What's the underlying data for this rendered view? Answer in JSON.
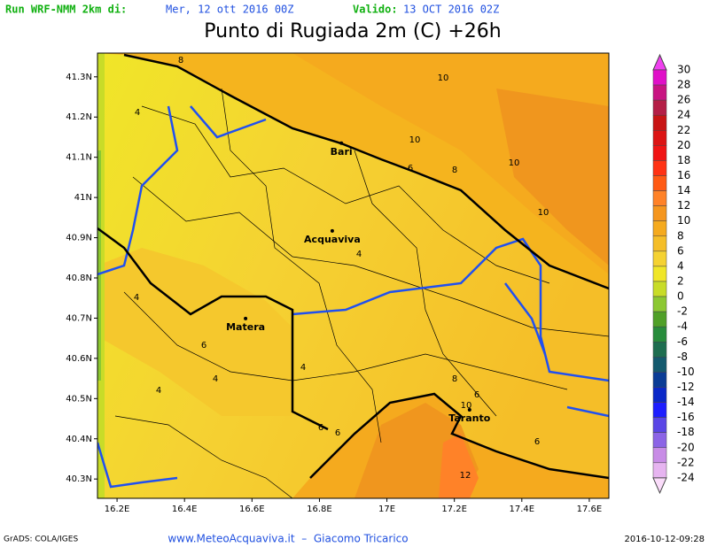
{
  "header": {
    "run_label": "Run WRF-NMM 2km di:",
    "run_date": "Mer, 12 ott 2016 00Z",
    "valid_label": "Valido:",
    "valid_date": "13 OCT 2016 02Z",
    "title": "Punto di Rugiada 2m (C) +26h"
  },
  "map": {
    "xlim": [
      16.142,
      17.658
    ],
    "ylim": [
      40.252,
      41.359
    ],
    "xticks": [
      {
        "value": 16.2,
        "label": "16.2E"
      },
      {
        "value": 16.4,
        "label": "16.4E"
      },
      {
        "value": 16.6,
        "label": "16.6E"
      },
      {
        "value": 16.8,
        "label": "16.8E"
      },
      {
        "value": 17,
        "label": "17E"
      },
      {
        "value": 17.2,
        "label": "17.2E"
      },
      {
        "value": 17.4,
        "label": "17.4E"
      },
      {
        "value": 17.6,
        "label": "17.6E"
      }
    ],
    "yticks": [
      {
        "value": 40.3,
        "label": "40.3N"
      },
      {
        "value": 40.4,
        "label": "40.4N"
      },
      {
        "value": 40.5,
        "label": "40.5N"
      },
      {
        "value": 40.6,
        "label": "40.6N"
      },
      {
        "value": 40.7,
        "label": "40.7N"
      },
      {
        "value": 40.8,
        "label": "40.8N"
      },
      {
        "value": 40.9,
        "label": "40.9N"
      },
      {
        "value": 41,
        "label": "41N"
      },
      {
        "value": 41.1,
        "label": "41.1N"
      },
      {
        "value": 41.2,
        "label": "41.2N"
      },
      {
        "value": 41.3,
        "label": "41.3N"
      }
    ],
    "cities": [
      {
        "name": "Bari",
        "lon": 16.865,
        "lat": 41.113
      },
      {
        "name": "Acquaviva",
        "lon": 16.838,
        "lat": 40.895
      },
      {
        "name": "Matera",
        "lon": 16.581,
        "lat": 40.677
      },
      {
        "name": "Taranto",
        "lon": 17.245,
        "lat": 40.45
      }
    ],
    "contour_labels": [
      8,
      10,
      4,
      10,
      6,
      8,
      10,
      10,
      4,
      4,
      6,
      4,
      4,
      4,
      8,
      6,
      10,
      6,
      6,
      6,
      12
    ]
  },
  "colorbar": {
    "levels": [
      30,
      28,
      26,
      24,
      22,
      20,
      18,
      16,
      14,
      12,
      10,
      8,
      6,
      4,
      2,
      0,
      -2,
      -4,
      -6,
      -8,
      -10,
      -12,
      -14,
      -16,
      -18,
      -20,
      -22,
      -24
    ],
    "colors": [
      "#f040f0",
      "#e010c8",
      "#c81482",
      "#b41e46",
      "#c81414",
      "#dc1414",
      "#f01414",
      "#ff3214",
      "#ff5a14",
      "#ff8228",
      "#f5961e",
      "#f5aa1e",
      "#f5be28",
      "#f5d232",
      "#f0e628",
      "#c8dc28",
      "#8cc832",
      "#50a028",
      "#288c3c",
      "#1e6e50",
      "#145a6e",
      "#0a3c96",
      "#0a28c8",
      "#1e1eff",
      "#5a46e6",
      "#8c64e6",
      "#c88ce6",
      "#e6b4f0",
      "#fadcfa"
    ]
  },
  "footer": {
    "left": "GrADS: COLA/IGES",
    "center": "www.MeteoAcquaviva.it  –  Giacomo Tricarico",
    "right": "2016-10-12-09:28"
  }
}
